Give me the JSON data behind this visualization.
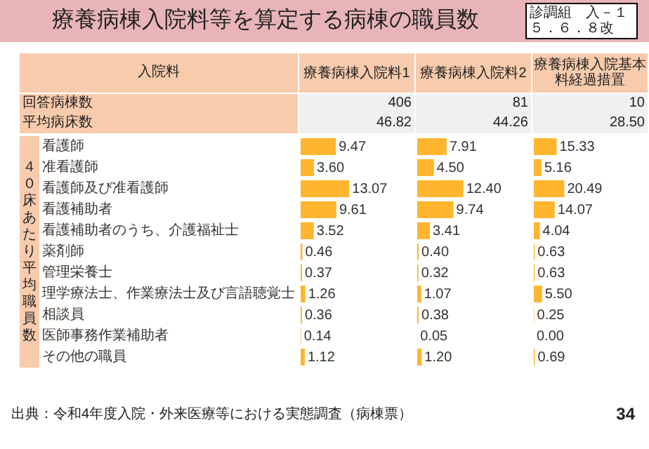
{
  "chart_data": [
    {
      "type": "bar",
      "orientation": "horizontal",
      "title": "療養病棟入院料等を算定する病棟の職員数",
      "xlabel": "療養病棟入院料1",
      "ylabel": "４０床あたり平均職員数",
      "categories": [
        "看護師",
        "准看護師",
        "看護師及び准看護師",
        "看護補助者",
        "看護補助者のうち、介護福祉士",
        "薬剤師",
        "管理栄養士",
        "理学療法士、作業療法士及び言語聴覚士",
        "相談員",
        "医師事務作業補助者",
        "その他の職員"
      ],
      "series": [
        {
          "color": "#ffb52e",
          "values": [
            9.47,
            3.6,
            13.07,
            9.61,
            3.52,
            0.46,
            0.37,
            1.26,
            0.36,
            0.14,
            1.12
          ],
          "value_labels": [
            "9.47",
            "3.60",
            "13.07",
            "9.61",
            "3.52",
            "0.46",
            "0.37",
            "1.26",
            "0.36",
            "0.14",
            "1.12"
          ]
        }
      ],
      "tick_labels": "y",
      "grid": false,
      "legend": false,
      "annotations": [
        "406",
        "46.82",
        "入院料",
        "回答病棟数",
        "平均病床数",
        "診調組　入－１",
        "５．６．８改",
        "出典：令和4年度入院・外来医療等における実態調査（病棟票）",
        "34"
      ]
    },
    {
      "type": "bar",
      "orientation": "horizontal",
      "xlabel": "療養病棟入院料2",
      "categories": [
        null,
        null,
        null,
        null,
        null,
        null,
        null,
        null,
        null,
        null,
        null
      ],
      "series": [
        {
          "color": "#ffb52e",
          "values": [
            7.91,
            4.5,
            12.4,
            9.74,
            3.41,
            0.4,
            0.32,
            1.07,
            0.38,
            0.05,
            1.2
          ],
          "value_labels": [
            "7.91",
            "4.50",
            "12.40",
            "9.74",
            "3.41",
            "0.40",
            "0.32",
            "1.07",
            "0.38",
            "0.05",
            "1.20"
          ]
        }
      ],
      "tick_labels": false,
      "grid": false,
      "legend": false,
      "annotations": [
        "81",
        "44.26"
      ]
    },
    {
      "type": "bar",
      "orientation": "horizontal",
      "xlabel": "療養病棟入院基本料経過措置",
      "categories": [
        null,
        null,
        null,
        null,
        null,
        null,
        null,
        null,
        null,
        null,
        null
      ],
      "series": [
        {
          "color": "#ffb52e",
          "values": [
            15.33,
            5.16,
            20.49,
            14.07,
            4.04,
            0.63,
            0.63,
            5.5,
            0.25,
            0.0,
            0.69
          ],
          "value_labels": [
            "15.33",
            "5.16",
            "20.49",
            "14.07",
            "4.04",
            "0.63",
            "0.63",
            "5.50",
            "0.25",
            "0.00",
            "0.69"
          ]
        }
      ],
      "tick_labels": false,
      "grid": false,
      "legend": false,
      "annotations": [
        "10",
        "28.50"
      ]
    }
  ]
}
